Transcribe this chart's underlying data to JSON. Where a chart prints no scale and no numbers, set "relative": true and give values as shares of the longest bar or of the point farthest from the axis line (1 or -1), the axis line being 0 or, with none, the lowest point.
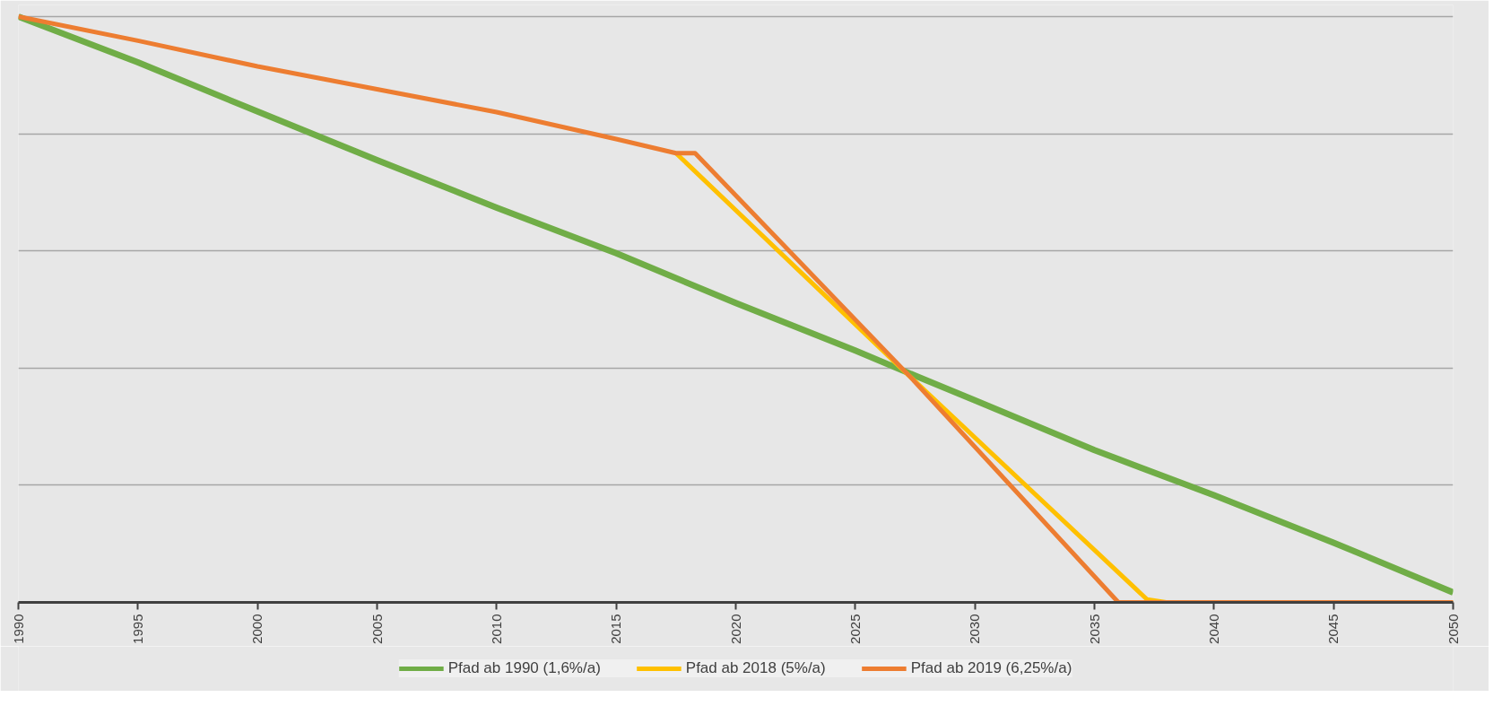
{
  "chart_data": {
    "type": "line",
    "relative": true,
    "xlim": [
      1990,
      2050
    ],
    "xticks": [
      1990,
      1995,
      2000,
      2005,
      2010,
      2015,
      2020,
      2025,
      2030,
      2035,
      2040,
      2045,
      2050
    ],
    "grid": "y",
    "legend": "bottom",
    "tick_labels": "x",
    "line_style": "solid",
    "marker": "none",
    "series": [
      {
        "name": "Pfad ab 1990 (1,6%/a)",
        "color": "#70ad47",
        "x": [
          1990,
          1995,
          2000,
          2005,
          2010,
          2015,
          2020,
          2025,
          2027.5,
          2030,
          2035,
          2040,
          2045,
          2050
        ],
        "values": [
          1,
          0.922,
          0.838,
          0.755,
          0.674,
          0.596,
          0.511,
          0.43,
          0.387,
          0.345,
          0.26,
          0.183,
          0.102,
          0.017
        ]
      },
      {
        "name": "Pfad ab 2018 (5%/a)",
        "color": "#ffc000",
        "x": [
          2017.5,
          2027.3,
          2037.2,
          2038,
          2050
        ],
        "values": [
          0.767,
          0.385,
          0.005,
          0,
          0
        ]
      },
      {
        "name": "Pfad ab 2019 (6,25%/a)",
        "color": "#ed7d31",
        "x": [
          1990,
          1995,
          2000,
          2005,
          2010,
          2015,
          2017.5,
          2018.3,
          2027.3,
          2036,
          2050
        ],
        "values": [
          1,
          0.959,
          0.915,
          0.876,
          0.837,
          0.791,
          0.767,
          0.767,
          0.385,
          0,
          0
        ]
      }
    ]
  }
}
